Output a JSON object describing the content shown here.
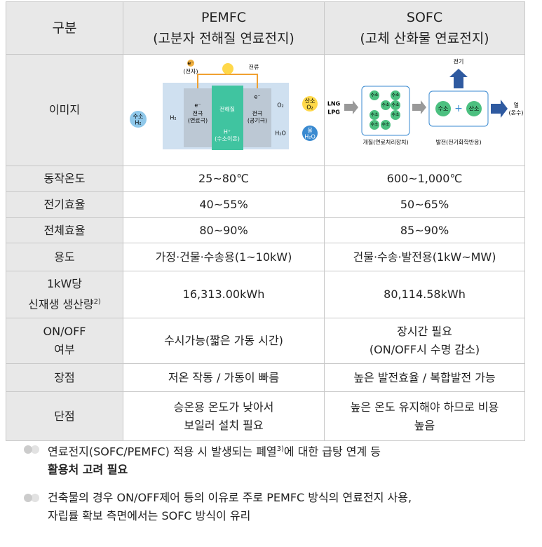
{
  "table": {
    "header": {
      "label": "구분",
      "columns": [
        {
          "name": "PEMFC",
          "description": "(고분자 전해질 연료전지)"
        },
        {
          "name": "SOFC",
          "description": "(고체 산화물 연료전지)"
        }
      ]
    },
    "image_row": {
      "label": "이미지",
      "pemfc": {
        "electron_top": "e⁻",
        "electron_top_caption": "(전자)",
        "current": "전류",
        "hydrogen": "수소",
        "hydrogen_formula": "H₂",
        "h2": "H₂",
        "anode_e": "e⁻",
        "anode": "전극",
        "anode_caption": "(연료극)",
        "electrolyte": "전해질",
        "proton": "H⁺",
        "proton_caption": "(수소이온)",
        "cathode_e": "e⁻",
        "cathode": "전극",
        "cathode_caption": "(공기극)",
        "o2": "O₂",
        "oxygen": "산소",
        "oxygen_formula": "O₂",
        "h2o": "H₂O",
        "water": "물",
        "water_formula": "H₂O"
      },
      "sofc": {
        "fuels": [
          "LNG",
          "LPG"
        ],
        "reformer_items": [
          "수소",
          "수소",
          "수소",
          "수소",
          "수소",
          "수소",
          "수소",
          "수소"
        ],
        "reformer": "개질(연료처리장치)",
        "electricity": "전기",
        "hydrogen": "수소",
        "oxygen": "산소",
        "generation": "발전(전기화학반응)",
        "heat": "열",
        "heat_caption": "(온수)"
      }
    },
    "rows": [
      {
        "label": [
          "동작온도"
        ],
        "values": [
          [
            "25~80℃"
          ],
          [
            "600~1,000℃"
          ]
        ]
      },
      {
        "label": [
          "전기효율"
        ],
        "values": [
          [
            "40~55%"
          ],
          [
            "50~65%"
          ]
        ]
      },
      {
        "label": [
          "전체효율"
        ],
        "values": [
          [
            "80~90%"
          ],
          [
            "85~90%"
          ]
        ]
      },
      {
        "label": [
          "용도"
        ],
        "values": [
          [
            "가정·건물·수송용(1~10kW)"
          ],
          [
            "건물·수송·발전용(1kW~MW)"
          ]
        ]
      },
      {
        "label": [
          "1kW당",
          "신재생 생산량"
        ],
        "label_note": "2)",
        "values": [
          [
            "16,313.00kWh"
          ],
          [
            "80,114.58kWh"
          ]
        ]
      },
      {
        "label": [
          "ON/OFF",
          "여부"
        ],
        "values": [
          [
            "수시가능(짧은 가동 시간)"
          ],
          [
            "장시간 필요",
            "(ON/OFF시 수명 감소)"
          ]
        ]
      },
      {
        "label": [
          "장점"
        ],
        "values": [
          [
            "저온 작동 / 가동이 빠름"
          ],
          [
            "높은 발전효율 / 복합발전 가능"
          ]
        ]
      },
      {
        "label": [
          "단점"
        ],
        "values": [
          [
            "승온용 온도가 낮아서",
            "보일러 설치 필요"
          ],
          [
            "높은 온도 유지해야 하므로 비용",
            "높음"
          ]
        ]
      }
    ]
  },
  "notes": [
    {
      "text": "연료전지(SOFC/PEMFC) 적용 시 발생되는 폐열",
      "note": "3)",
      "text_after": "에 대한 급탕 연계 등",
      "bold": "활용처 고려 필요"
    },
    {
      "lines": [
        "건축물의 경우 ON/OFF제어 등의 이유로 주로 PEMFC 방식의 연료전지 사용,",
        "자립률 확보 측면에서는 SOFC 방식이 유리"
      ]
    }
  ]
}
